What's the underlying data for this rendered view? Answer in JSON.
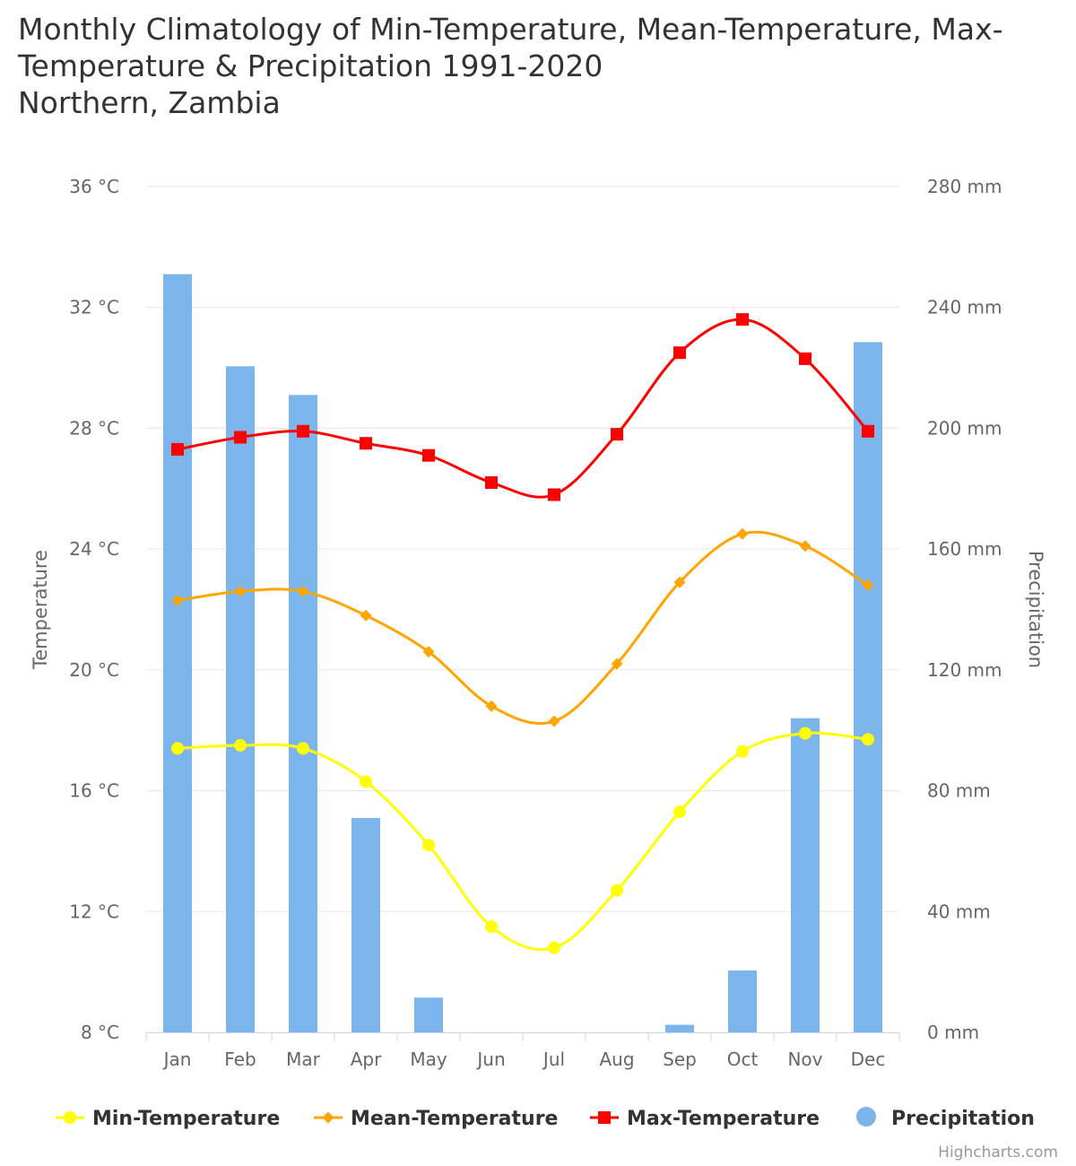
{
  "title_lines": [
    "Monthly Climatology of Min-Temperature, Mean-Temperature, Max-",
    "Temperature & Precipitation 1991-2020",
    "Northern, Zambia"
  ],
  "credits": "Highcharts.com",
  "colors": {
    "min": "#ffff00",
    "mean": "#ffa500",
    "max": "#ff0000",
    "precip": "#7cb5ec",
    "grid": "#e6e6e6",
    "axis_line": "#ccd6eb"
  },
  "chart_data": {
    "type": "bar+line",
    "categories": [
      "Jan",
      "Feb",
      "Mar",
      "Apr",
      "May",
      "Jun",
      "Jul",
      "Aug",
      "Sep",
      "Oct",
      "Nov",
      "Dec"
    ],
    "y_left": {
      "title": "Temperature",
      "range": [
        8,
        36
      ],
      "ticks": [
        8,
        12,
        16,
        20,
        24,
        28,
        32,
        36
      ],
      "tick_labels": [
        "8 °C",
        "12 °C",
        "16 °C",
        "20 °C",
        "24 °C",
        "28 °C",
        "32 °C",
        "36 °C"
      ]
    },
    "y_right": {
      "title": "Precipitation",
      "range": [
        0,
        280
      ],
      "ticks": [
        0,
        40,
        80,
        120,
        160,
        200,
        240,
        280
      ],
      "tick_labels": [
        "0 mm",
        "40 mm",
        "80 mm",
        "120 mm",
        "160 mm",
        "200 mm",
        "240 mm",
        "280 mm"
      ]
    },
    "grid": true,
    "legend_position": "bottom-center",
    "series": [
      {
        "name": "Min-Temperature",
        "type": "spline",
        "axis": "left",
        "marker": "circle",
        "color": "#ffff00",
        "values": [
          17.4,
          17.5,
          17.4,
          16.3,
          14.2,
          11.5,
          10.8,
          12.7,
          15.3,
          17.3,
          17.9,
          17.7
        ]
      },
      {
        "name": "Mean-Temperature",
        "type": "spline",
        "axis": "left",
        "marker": "diamond",
        "color": "#ffa500",
        "values": [
          22.3,
          22.6,
          22.6,
          21.8,
          20.6,
          18.8,
          18.3,
          20.2,
          22.9,
          24.5,
          24.1,
          22.8
        ]
      },
      {
        "name": "Max-Temperature",
        "type": "spline",
        "axis": "left",
        "marker": "square",
        "color": "#ff0000",
        "values": [
          27.3,
          27.7,
          27.9,
          27.5,
          27.1,
          26.2,
          25.8,
          27.8,
          30.5,
          31.6,
          30.3,
          27.9
        ]
      },
      {
        "name": "Precipitation",
        "type": "column",
        "axis": "right",
        "color": "#7cb5ec",
        "values": [
          251,
          220.5,
          211,
          71,
          11.5,
          0,
          0,
          0,
          2.5,
          20.5,
          104,
          228.5
        ]
      }
    ]
  }
}
